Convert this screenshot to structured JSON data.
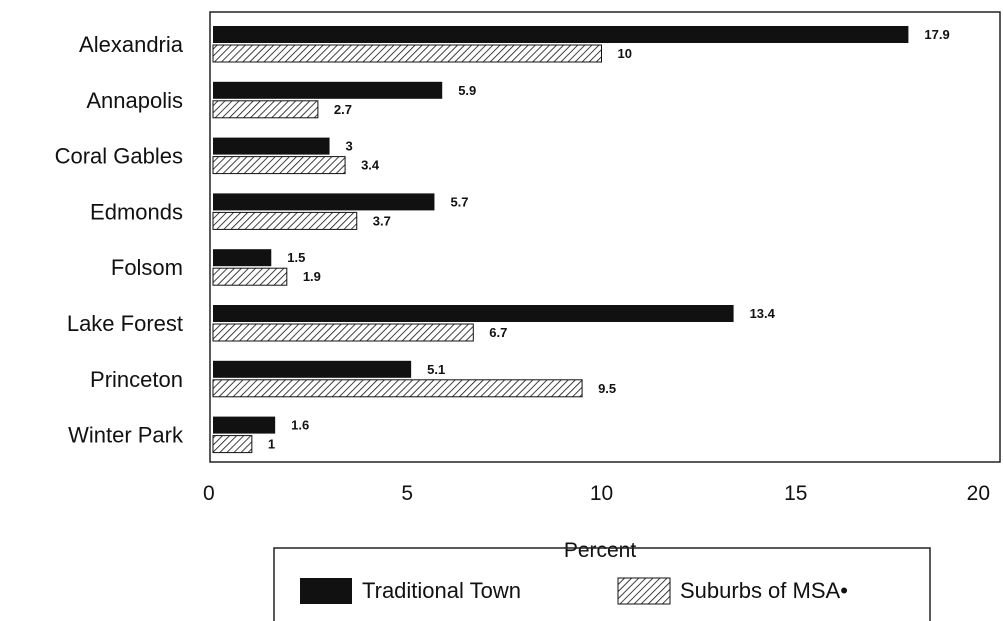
{
  "chart_data": {
    "type": "bar",
    "orientation": "horizontal",
    "title": "",
    "xlabel": "Percent",
    "ylabel": "",
    "xlim": [
      0,
      20
    ],
    "xticks": [
      "0",
      "5",
      "10",
      "15",
      "20"
    ],
    "grid": false,
    "legend_placement": "bottom",
    "categories": [
      "Alexandria",
      "Annapolis",
      "Coral Gables",
      "Edmonds",
      "Folsom",
      "Lake Forest",
      "Princeton",
      "Winter Park"
    ],
    "series": [
      {
        "name": "Traditional Town",
        "pattern": "solid",
        "color": "#111111",
        "values": [
          17.9,
          5.9,
          3,
          5.7,
          1.5,
          13.4,
          5.1,
          1.6
        ],
        "labels": [
          "17.9",
          "5.9",
          "3",
          "5.7",
          "1.5",
          "13.4",
          "5.1",
          "1.6"
        ]
      },
      {
        "name": "Suburbs of MSA•",
        "pattern": "hatched",
        "color": "#111111",
        "values": [
          10,
          2.7,
          3.4,
          3.7,
          1.9,
          6.7,
          9.5,
          1
        ],
        "labels": [
          "10",
          "2.7",
          "3.4",
          "3.7",
          "1.9",
          "6.7",
          "9.5",
          "1"
        ]
      }
    ]
  }
}
